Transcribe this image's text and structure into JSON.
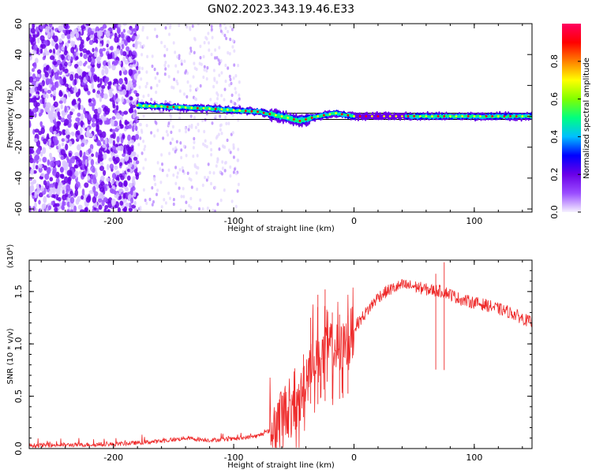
{
  "figure": {
    "title": "GN02.2023.343.19.46.E33"
  },
  "chart_data": [
    {
      "type": "heatmap",
      "xlabel": "Height of straight line (km)",
      "ylabel": "Frequency (Hz)",
      "xlim": [
        -270,
        148
      ],
      "ylim": [
        -62,
        60
      ],
      "xticks": [
        -200,
        -100,
        0,
        100
      ],
      "yticks": [
        -60,
        -40,
        -20,
        0,
        20,
        40,
        60
      ],
      "colorbar": {
        "label": "Normalized spectral amplitude",
        "range": [
          0,
          1
        ],
        "ticks": [
          0.0,
          0.2,
          0.4,
          0.6,
          0.8
        ],
        "colormap": [
          "#f5f0ff",
          "#9a4dff",
          "#6a00e8",
          "#0000ff",
          "#00bfff",
          "#00ff80",
          "#80ff00",
          "#ffff00",
          "#ff8000",
          "#ff0000",
          "#ff0060"
        ]
      },
      "features": {
        "noise_region_x": [
          -270,
          -180
        ],
        "sparse_noise_x": [
          -180,
          -95
        ],
        "signal_line_x": [
          -180,
          148
        ],
        "signal_line_freq": [
          [
            -180,
            7
          ],
          [
            -150,
            6
          ],
          [
            -120,
            5
          ],
          [
            -100,
            4
          ],
          [
            -80,
            3
          ],
          [
            -60,
            0
          ],
          [
            -45,
            -3
          ],
          [
            -30,
            0
          ],
          [
            -15,
            2
          ],
          [
            0,
            0
          ],
          [
            148,
            0
          ]
        ],
        "reference_band_hz": [
          -2,
          2
        ],
        "gap_x": [
          0,
          43
        ]
      }
    },
    {
      "type": "line",
      "xlabel": "Height of straight line (km)",
      "ylabel": "SNR (10 * v/v)",
      "scale_label": "(x10⁴)",
      "xlim": [
        -270,
        148
      ],
      "ylim": [
        0,
        1.8
      ],
      "xticks": [
        -200,
        -100,
        0,
        100
      ],
      "yticks": [
        0.0,
        0.5,
        1.0,
        1.5
      ],
      "color": "#ee2a2a",
      "envelope": [
        [
          -270,
          0.03
        ],
        [
          -200,
          0.04
        ],
        [
          -160,
          0.07
        ],
        [
          -140,
          0.1
        ],
        [
          -120,
          0.08
        ],
        [
          -100,
          0.09
        ],
        [
          -80,
          0.12
        ],
        [
          -65,
          0.2
        ],
        [
          -58,
          0.38
        ],
        [
          -50,
          0.3
        ],
        [
          -45,
          0.45
        ],
        [
          -40,
          0.7
        ],
        [
          -35,
          0.9
        ],
        [
          -30,
          0.85
        ],
        [
          -25,
          0.9
        ],
        [
          -20,
          0.95
        ],
        [
          -10,
          0.95
        ],
        [
          0,
          1.15
        ],
        [
          10,
          1.3
        ],
        [
          20,
          1.45
        ],
        [
          30,
          1.52
        ],
        [
          40,
          1.56
        ],
        [
          50,
          1.55
        ],
        [
          60,
          1.52
        ],
        [
          75,
          1.5
        ],
        [
          90,
          1.42
        ],
        [
          110,
          1.37
        ],
        [
          130,
          1.3
        ],
        [
          148,
          1.2
        ]
      ],
      "spikes": [
        [
          -62,
          0.47
        ],
        [
          -42,
          0.9
        ],
        [
          -36,
          1.25
        ],
        [
          -30,
          1.47
        ],
        [
          -24,
          1.52
        ],
        [
          -18,
          1.3
        ],
        [
          -12,
          1.28
        ],
        [
          -5,
          1.27
        ],
        [
          75,
          1.78
        ],
        [
          68,
          1.67
        ]
      ]
    }
  ]
}
